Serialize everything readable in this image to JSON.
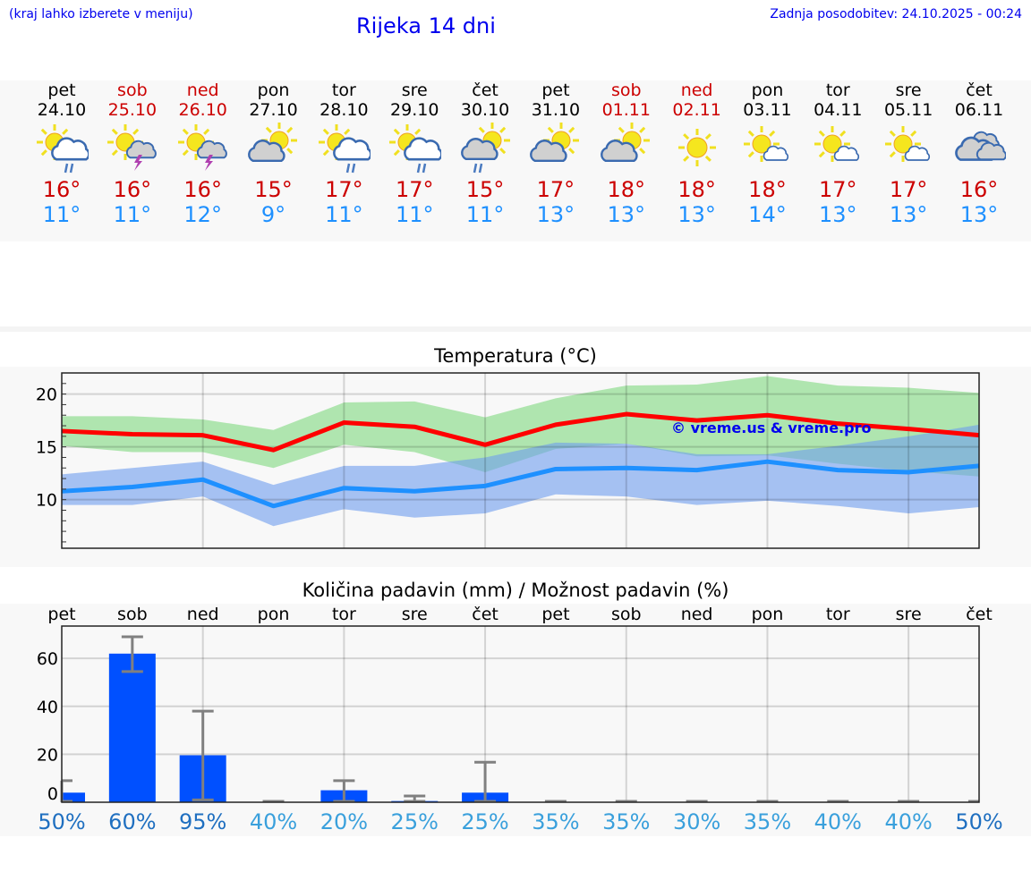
{
  "header": {
    "hint": "(kraj lahko izberete v meniju)",
    "title": "Rijeka 14 dni",
    "updated": "Zadnja posodobitev: 24.10.2025 - 00:24"
  },
  "colors": {
    "max": "#cc0000",
    "min": "#1e90ff",
    "weekend": "#cc0000",
    "bar": "#0050ff",
    "link": "#0000ee"
  },
  "days": [
    {
      "name": "pet",
      "date": "24.10",
      "weekend": false,
      "icon": "sun-cloud-rain",
      "max": "16°",
      "min": "11°"
    },
    {
      "name": "sob",
      "date": "25.10",
      "weekend": true,
      "icon": "sun-cloud-thunder",
      "max": "16°",
      "min": "11°"
    },
    {
      "name": "ned",
      "date": "26.10",
      "weekend": true,
      "icon": "sun-cloud-thunder",
      "max": "16°",
      "min": "12°"
    },
    {
      "name": "pon",
      "date": "27.10",
      "weekend": false,
      "icon": "cloud-sun",
      "max": "15°",
      "min": "9°"
    },
    {
      "name": "tor",
      "date": "28.10",
      "weekend": false,
      "icon": "sun-cloud-rain",
      "max": "17°",
      "min": "11°"
    },
    {
      "name": "sre",
      "date": "29.10",
      "weekend": false,
      "icon": "sun-cloud-rain",
      "max": "17°",
      "min": "11°"
    },
    {
      "name": "čet",
      "date": "30.10",
      "weekend": false,
      "icon": "cloud-sun-rain",
      "max": "15°",
      "min": "11°"
    },
    {
      "name": "pet",
      "date": "31.10",
      "weekend": false,
      "icon": "cloud-sun",
      "max": "17°",
      "min": "13°"
    },
    {
      "name": "sob",
      "date": "01.11",
      "weekend": true,
      "icon": "cloud-sun",
      "max": "18°",
      "min": "13°"
    },
    {
      "name": "ned",
      "date": "02.11",
      "weekend": true,
      "icon": "sun",
      "max": "18°",
      "min": "13°"
    },
    {
      "name": "pon",
      "date": "03.11",
      "weekend": false,
      "icon": "sun-small-cloud",
      "max": "18°",
      "min": "14°"
    },
    {
      "name": "tor",
      "date": "04.11",
      "weekend": false,
      "icon": "sun-small-cloud",
      "max": "17°",
      "min": "13°"
    },
    {
      "name": "sre",
      "date": "05.11",
      "weekend": false,
      "icon": "sun-small-cloud",
      "max": "17°",
      "min": "13°"
    },
    {
      "name": "čet",
      "date": "06.11",
      "weekend": false,
      "icon": "clouds",
      "max": "16°",
      "min": "13°"
    }
  ],
  "chart_data": [
    {
      "type": "line",
      "title": "Temperatura (°C)",
      "watermark": "© vreme.us & vreme.pro",
      "ylim": [
        5.4,
        22
      ],
      "yticks": [
        10,
        15,
        20
      ],
      "ytick_labels": [
        "10",
        "15",
        "20"
      ],
      "grid": true,
      "series": [
        {
          "name": "max",
          "color": "#ff0000",
          "values": [
            16.5,
            16.2,
            16.1,
            14.7,
            17.3,
            16.9,
            15.2,
            17.1,
            18.1,
            17.5,
            18.0,
            17.2,
            16.7,
            16.1
          ],
          "band_low": [
            15.1,
            14.5,
            14.5,
            13.0,
            15.2,
            14.5,
            12.6,
            14.8,
            15.3,
            14.1,
            14.2,
            13.4,
            12.7,
            12.2
          ],
          "band_high": [
            17.9,
            17.9,
            17.6,
            16.6,
            19.2,
            19.3,
            17.8,
            19.6,
            20.8,
            20.9,
            21.7,
            20.8,
            20.6,
            20.1
          ],
          "band_color": "#7fd87f"
        },
        {
          "name": "min",
          "color": "#1e90ff",
          "values": [
            10.8,
            11.2,
            11.9,
            9.4,
            11.1,
            10.8,
            11.3,
            12.9,
            13.0,
            12.8,
            13.6,
            12.8,
            12.6,
            13.2
          ],
          "band_low": [
            9.5,
            9.5,
            10.3,
            7.5,
            9.1,
            8.3,
            8.7,
            10.5,
            10.3,
            9.5,
            9.9,
            9.4,
            8.7,
            9.3
          ],
          "band_high": [
            12.4,
            13.0,
            13.6,
            11.4,
            13.2,
            13.2,
            14.0,
            15.4,
            15.3,
            14.3,
            14.3,
            15.1,
            16.0,
            17.1
          ],
          "band_color": "#6e9cee"
        }
      ]
    },
    {
      "type": "bar",
      "title": "Količina padavin (mm) / Možnost padavin (%)",
      "categories": [
        "pet",
        "sob",
        "ned",
        "pon",
        "tor",
        "sre",
        "čet",
        "pet",
        "sob",
        "ned",
        "pon",
        "tor",
        "sre",
        "čet"
      ],
      "ylim": [
        0,
        73.5
      ],
      "yticks": [
        0,
        20,
        40,
        60
      ],
      "ytick_labels": [
        "0",
        "20",
        "40",
        "60"
      ],
      "values": [
        4,
        62,
        19.6,
        0,
        5,
        0.5,
        4,
        0,
        0,
        0,
        0,
        0,
        0,
        0
      ],
      "err_low": [
        0,
        54.5,
        1,
        0,
        0,
        0,
        0,
        0,
        0,
        0,
        0,
        0,
        0,
        0
      ],
      "err_high": [
        9,
        69,
        38,
        0,
        9,
        2.6,
        16.7,
        0,
        0,
        0,
        0,
        0,
        0,
        0
      ],
      "probability": [
        "50%",
        "60%",
        "95%",
        "40%",
        "20%",
        "25%",
        "25%",
        "35%",
        "35%",
        "30%",
        "35%",
        "40%",
        "40%",
        "50%"
      ],
      "probability_values": [
        50,
        60,
        95,
        40,
        20,
        25,
        25,
        35,
        35,
        30,
        35,
        40,
        40,
        50
      ]
    }
  ]
}
